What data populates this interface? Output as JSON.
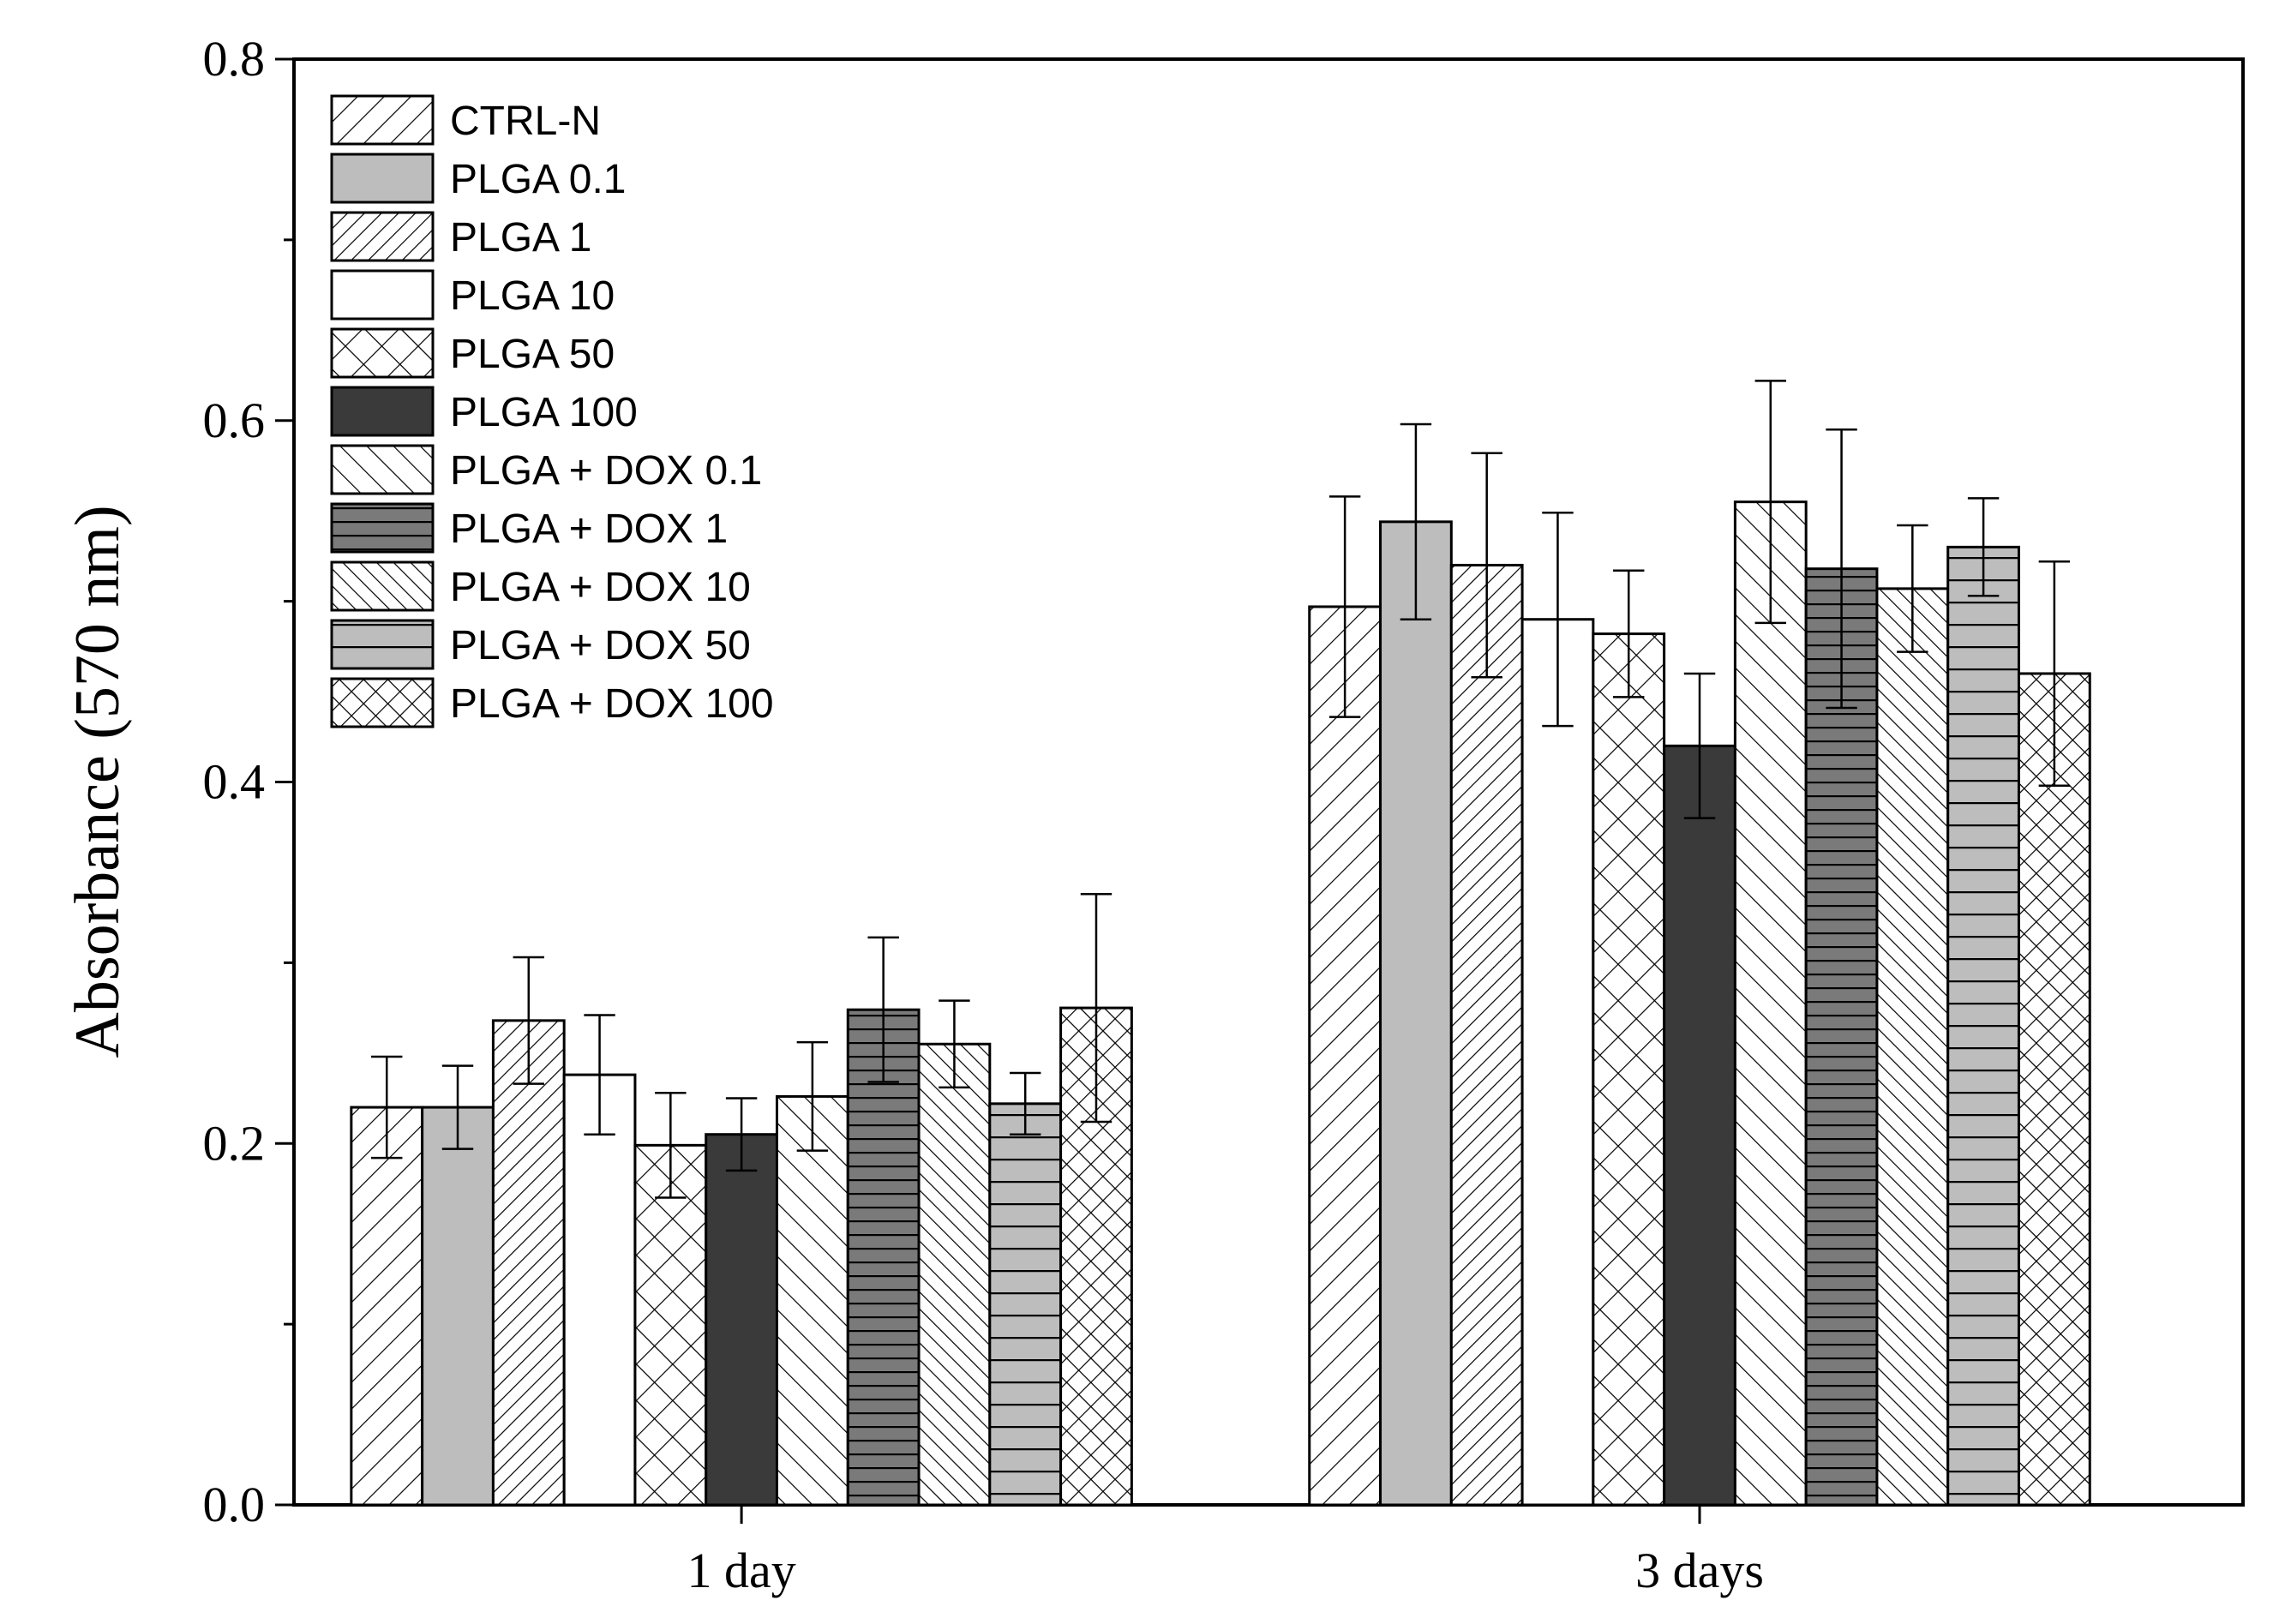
{
  "chart_data": {
    "type": "bar",
    "title": "",
    "xlabel": "",
    "ylabel": "Absorbance (570 nm)",
    "ylim": [
      0,
      0.8
    ],
    "yticks": [
      "0.0",
      "0.2",
      "0.4",
      "0.6",
      "0.8"
    ],
    "categories": [
      "1 day",
      "3 days"
    ],
    "series": [
      {
        "name": "CTRL-N",
        "values": [
          0.22,
          0.497
        ],
        "errors": [
          0.028,
          0.061
        ],
        "pattern": "diag-right-sparse",
        "color": "#ffffff"
      },
      {
        "name": "PLGA 0.1",
        "values": [
          0.22,
          0.544
        ],
        "errors": [
          0.023,
          0.054
        ],
        "pattern": "solid",
        "color": "#bdbdbd"
      },
      {
        "name": "PLGA 1",
        "values": [
          0.268,
          0.52
        ],
        "errors": [
          0.035,
          0.062
        ],
        "pattern": "diag-right-dense",
        "color": "#ffffff"
      },
      {
        "name": "PLGA 10",
        "values": [
          0.238,
          0.49
        ],
        "errors": [
          0.033,
          0.059
        ],
        "pattern": "solid",
        "color": "#ffffff"
      },
      {
        "name": "PLGA 50",
        "values": [
          0.199,
          0.482
        ],
        "errors": [
          0.029,
          0.035
        ],
        "pattern": "crosshatch-sparse",
        "color": "#ffffff"
      },
      {
        "name": "PLGA 100",
        "values": [
          0.205,
          0.42
        ],
        "errors": [
          0.02,
          0.04
        ],
        "pattern": "solid",
        "color": "#3a3a3a"
      },
      {
        "name": "PLGA + DOX 0.1",
        "values": [
          0.226,
          0.555
        ],
        "errors": [
          0.03,
          0.067
        ],
        "pattern": "diag-left-sparse",
        "color": "#ffffff"
      },
      {
        "name": "PLGA + DOX 1",
        "values": [
          0.274,
          0.518
        ],
        "errors": [
          0.04,
          0.077
        ],
        "pattern": "horiz-dense",
        "color": "#7a7a7a"
      },
      {
        "name": "PLGA + DOX 10",
        "values": [
          0.255,
          0.507
        ],
        "errors": [
          0.024,
          0.035
        ],
        "pattern": "diag-left-dense",
        "color": "#ffffff"
      },
      {
        "name": "PLGA + DOX 50",
        "values": [
          0.222,
          0.53
        ],
        "errors": [
          0.017,
          0.027
        ],
        "pattern": "horiz-sparse",
        "color": "#bdbdbd"
      },
      {
        "name": "PLGA + DOX 100",
        "values": [
          0.275,
          0.46
        ],
        "errors": [
          0.063,
          0.062
        ],
        "pattern": "crosshatch-dense",
        "color": "#ffffff"
      }
    ],
    "legend_position": "top-left",
    "grid": false
  }
}
